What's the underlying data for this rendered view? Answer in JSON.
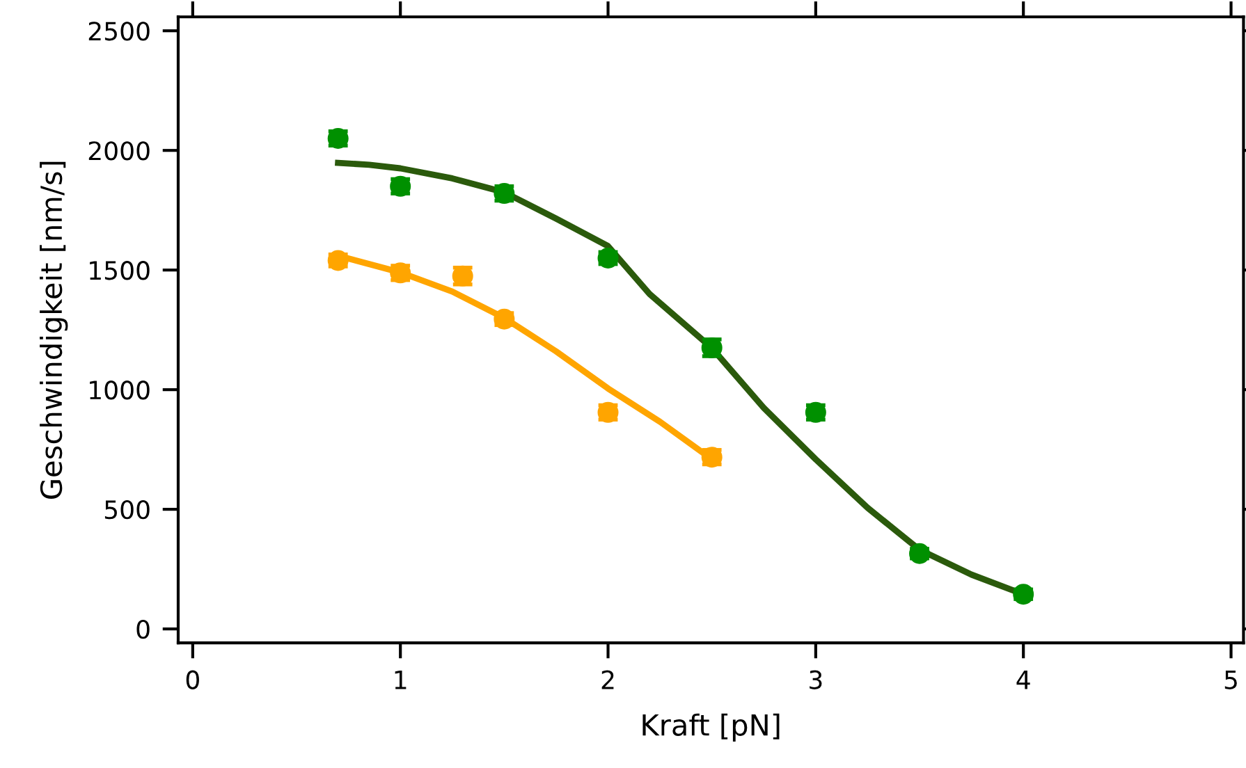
{
  "chart_data": {
    "type": "scatter",
    "xlabel": "Kraft [pN]",
    "ylabel": "Geschwindigkeit [nm/s]",
    "xlim": [
      -0.07,
      5.06
    ],
    "ylim": [
      -58,
      2558
    ],
    "xticks": [
      0,
      1,
      2,
      3,
      4,
      5
    ],
    "yticks": [
      0,
      500,
      1000,
      1500,
      2000,
      2500
    ],
    "grid": false,
    "marker": "circle",
    "series": [
      {
        "color": "#009000",
        "x": [
          0.7,
          1.0,
          1.5,
          2.0,
          2.5,
          3.0,
          3.5,
          4.0
        ],
        "values": [
          2050,
          1850,
          1820,
          1550,
          1175,
          905,
          315,
          145
        ],
        "errors": [
          30,
          30,
          30,
          25,
          35,
          30,
          20,
          20
        ]
      },
      {
        "color": "#ffa500",
        "x": [
          0.7,
          1.0,
          1.3,
          1.5,
          2.0,
          2.5
        ],
        "values": [
          1540,
          1488,
          1475,
          1295,
          905,
          718
        ],
        "errors": [
          25,
          30,
          35,
          25,
          30,
          30
        ]
      },
      {
        "type": "line",
        "color": "#2b5a0c",
        "marker": "none",
        "x": [
          0.7,
          0.85,
          1.0,
          1.25,
          1.5,
          1.75,
          2.0,
          2.2,
          2.5,
          2.75,
          3.0,
          3.25,
          3.5,
          3.75,
          4.0
        ],
        "values": [
          1948,
          1940,
          1925,
          1883,
          1825,
          1715,
          1600,
          1400,
          1174,
          924,
          709,
          506,
          331,
          227,
          145
        ]
      },
      {
        "type": "line",
        "color": "#ffa500",
        "marker": "none",
        "x": [
          0.7,
          1.0,
          1.25,
          1.5,
          1.75,
          2.0,
          2.25,
          2.5
        ],
        "values": [
          1560,
          1490,
          1410,
          1300,
          1160,
          1005,
          866,
          709
        ]
      }
    ]
  }
}
